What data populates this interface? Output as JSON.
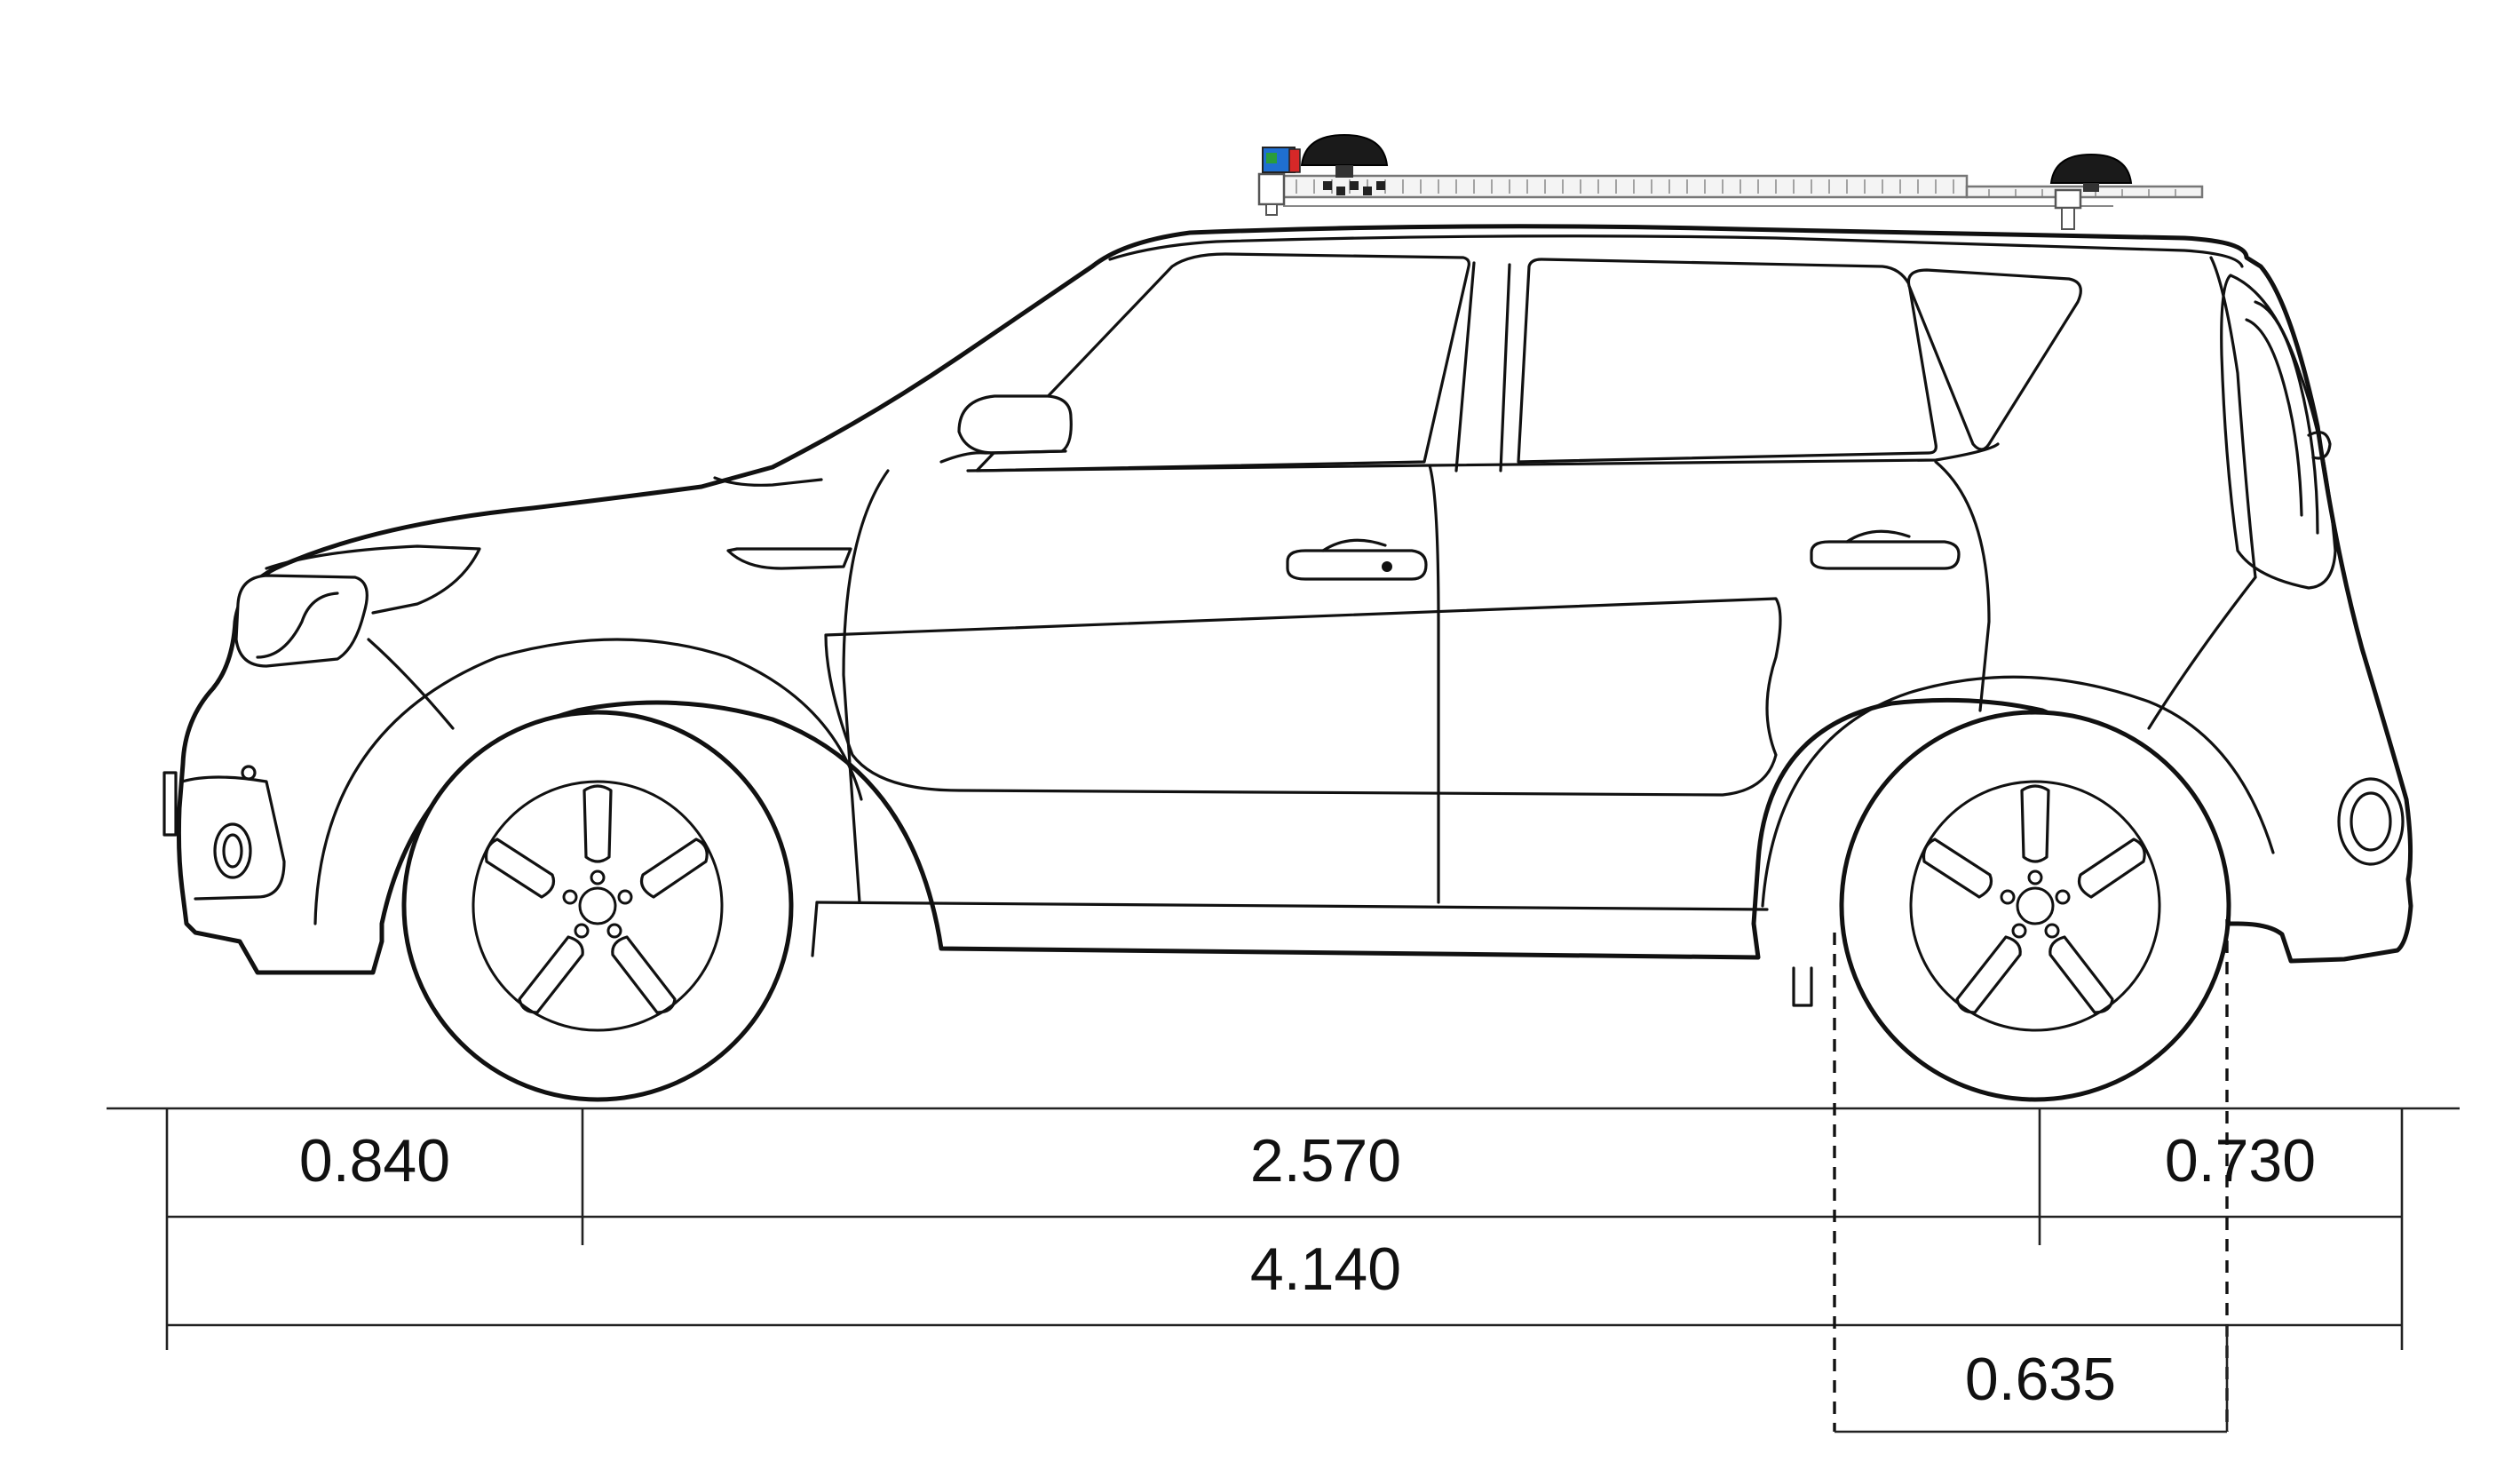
{
  "figure": {
    "subject": "side-view line drawing of compact SUV with roof-mounted sensor rack and two GNSS antennas",
    "colors": {
      "line": "#111111",
      "background": "#ffffff",
      "sensor_red": "#d62828",
      "sensor_blue": "#1f6fd1",
      "sensor_green": "#2a9d3c"
    }
  },
  "dimensions": {
    "front_overhang": "0.840",
    "wheelbase": "2.570",
    "rear_overhang": "0.730",
    "overall_length": "4.140",
    "rear_sensor_offset": "0.635"
  }
}
